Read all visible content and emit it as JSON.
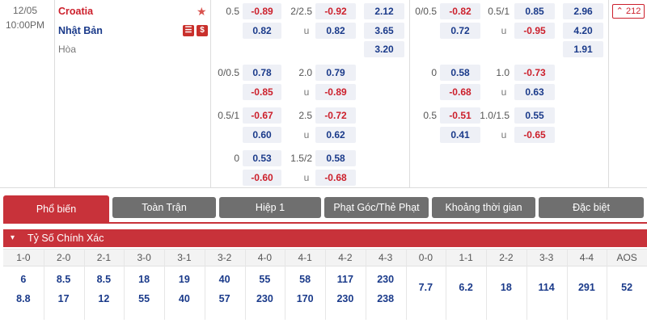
{
  "match": {
    "date": "12/05",
    "time": "10:00PM",
    "home": "Croatia",
    "away": "Nhật Bản",
    "draw": "Hòa",
    "more_count": "212"
  },
  "full_time": {
    "handicap_main": {
      "line": "0.5",
      "home": "-0.89",
      "away": "0.82"
    },
    "ou_main": {
      "line": "2/2.5",
      "over": "-0.92",
      "u": "u",
      "under": "0.82"
    },
    "eu": [
      "2.12",
      "3.65",
      "3.20"
    ],
    "handicap_rows": [
      {
        "line": "0/0.5",
        "home": "0.78",
        "away": "-0.85"
      },
      {
        "line": "0.5/1",
        "home": "-0.67",
        "away": "0.60"
      },
      {
        "line": "0",
        "home": "0.53",
        "away": "-0.60"
      }
    ],
    "ou_rows": [
      {
        "line": "2.0",
        "over": "0.79",
        "u": "u",
        "under": "-0.89"
      },
      {
        "line": "2.5",
        "over": "-0.72",
        "u": "u",
        "under": "0.62"
      },
      {
        "line": "1.5/2",
        "over": "0.58",
        "u": "u",
        "under": "-0.68"
      }
    ]
  },
  "first_half": {
    "handicap_main": {
      "line": "0/0.5",
      "home": "-0.82",
      "away": "0.72"
    },
    "ou_main": {
      "line": "0.5/1",
      "over": "0.85",
      "u": "u",
      "under": "-0.95"
    },
    "eu": [
      "2.96",
      "4.20",
      "1.91"
    ],
    "handicap_rows": [
      {
        "line": "0",
        "home": "0.58",
        "away": "-0.68"
      },
      {
        "line": "0.5",
        "home": "-0.51",
        "away": "0.41"
      }
    ],
    "ou_rows": [
      {
        "line": "1.0",
        "over": "-0.73",
        "u": "u",
        "under": "0.63"
      },
      {
        "line": "1.0/1.5",
        "over": "0.55",
        "u": "u",
        "under": "-0.65"
      }
    ]
  },
  "tabs": [
    "Phổ biến",
    "Toàn Trận",
    "Hiệp 1",
    "Phạt Góc/Thẻ Phạt",
    "Khoảng thời gian",
    "Đặc biệt"
  ],
  "section_title": "Tỷ Số Chính Xác",
  "scores": [
    {
      "label": "1-0",
      "top": "6",
      "bottom": "8.8"
    },
    {
      "label": "2-0",
      "top": "8.5",
      "bottom": "17"
    },
    {
      "label": "2-1",
      "top": "8.5",
      "bottom": "12"
    },
    {
      "label": "3-0",
      "top": "18",
      "bottom": "55"
    },
    {
      "label": "3-1",
      "top": "19",
      "bottom": "40"
    },
    {
      "label": "3-2",
      "top": "40",
      "bottom": "57"
    },
    {
      "label": "4-0",
      "top": "55",
      "bottom": "230"
    },
    {
      "label": "4-1",
      "top": "58",
      "bottom": "170"
    },
    {
      "label": "4-2",
      "top": "117",
      "bottom": "230"
    },
    {
      "label": "4-3",
      "top": "230",
      "bottom": "238"
    },
    {
      "label": "0-0",
      "mid": "7.7"
    },
    {
      "label": "1-1",
      "mid": "6.2"
    },
    {
      "label": "2-2",
      "mid": "18"
    },
    {
      "label": "3-3",
      "mid": "114"
    },
    {
      "label": "4-4",
      "mid": "291"
    },
    {
      "label": "AOS",
      "mid": "52"
    }
  ],
  "colors": {
    "accent": "#c8323a",
    "tab_inactive": "#6f6f6f",
    "negative": "#cc1f2b",
    "positive": "#1a3a8a",
    "odd_bg": "#eef0f6"
  }
}
